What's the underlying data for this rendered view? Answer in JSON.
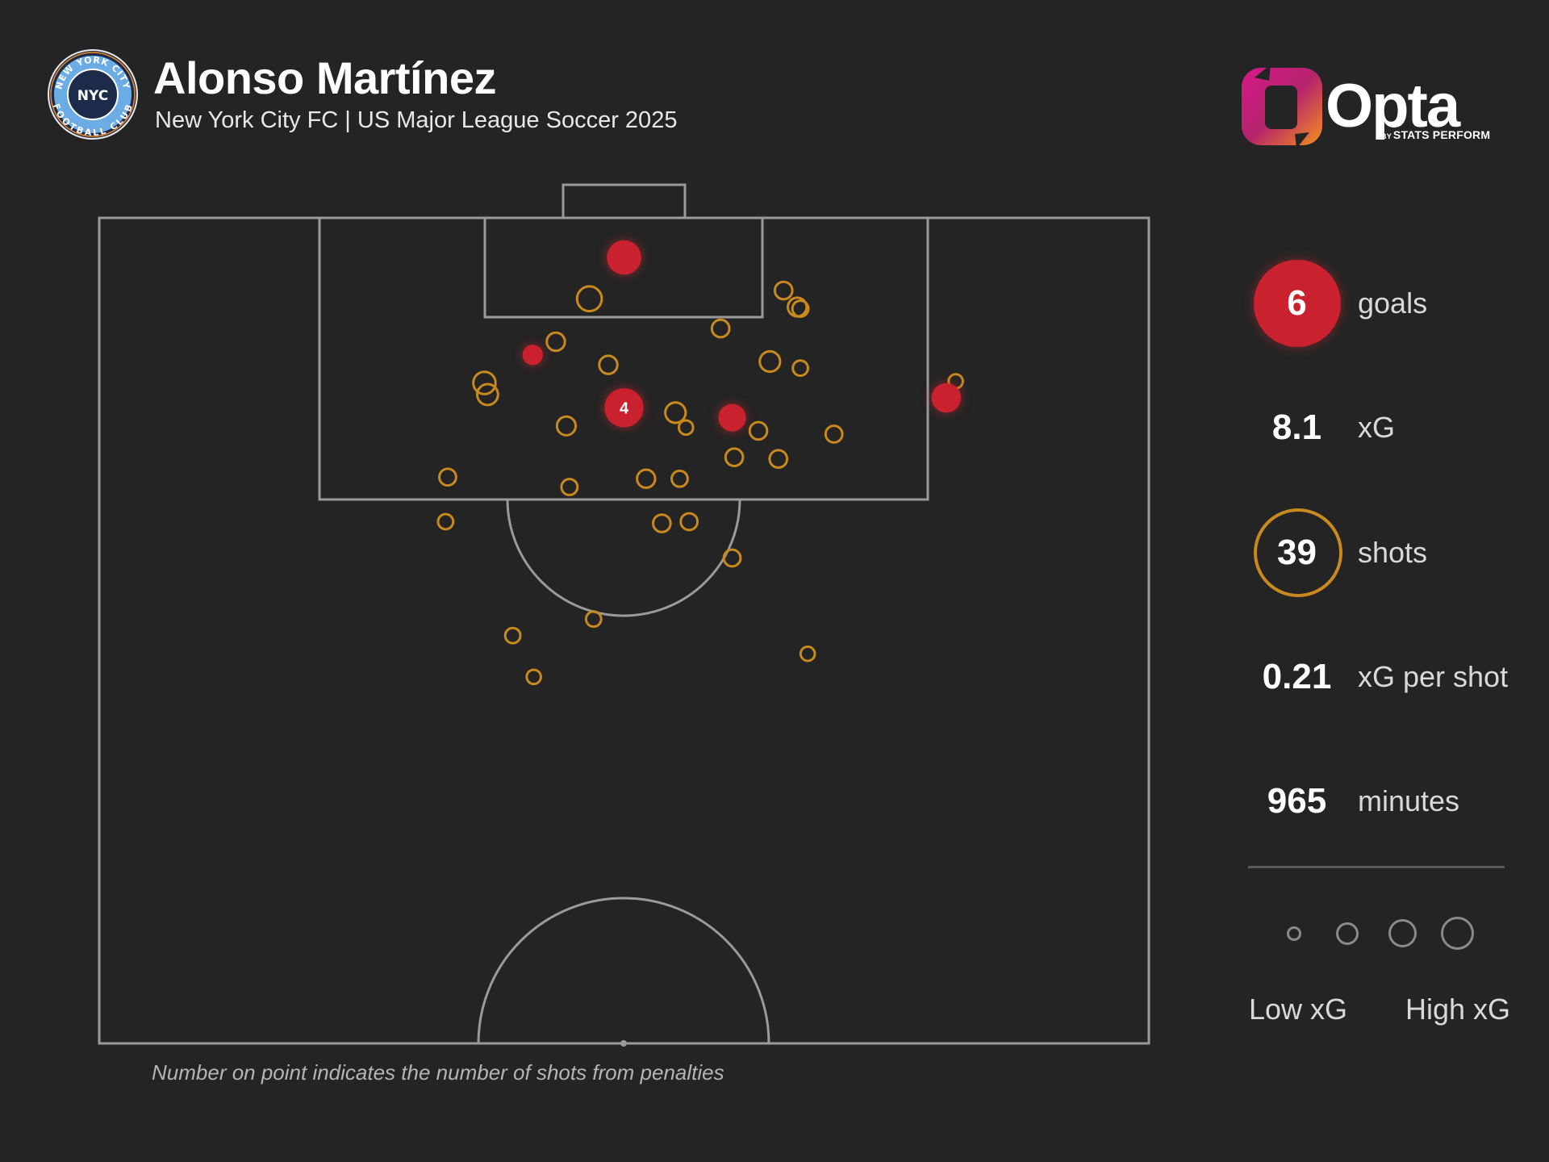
{
  "header": {
    "player_name": "Alonso Martínez",
    "subtitle": "New York City FC | US Major League Soccer 2025"
  },
  "crest": {
    "ring_text_top": "NEW YORK CITY",
    "ring_text_bottom": "FOOTBALL CLUB",
    "monogram": "NYC",
    "icon": "nycfc-crest-icon"
  },
  "brand": {
    "word": "Opta",
    "by_text": "BY",
    "sub_text": "STATS PERFORM",
    "icon": "opta-logo-icon"
  },
  "stats": {
    "goals": {
      "value": "6",
      "label": "goals"
    },
    "xg": {
      "value": "8.1",
      "label": "xG"
    },
    "shots": {
      "value": "39",
      "label": "shots"
    },
    "xg_per_shot": {
      "value": "0.21",
      "label": "xG per shot"
    },
    "minutes": {
      "value": "965",
      "label": "minutes"
    }
  },
  "legend": {
    "low_label": "Low xG",
    "high_label": "High xG"
  },
  "footnote": "Number on point indicates the number of shots from penalties",
  "colors": {
    "background": "#242424",
    "goal": "#c9212e",
    "shot": "#c8891e",
    "pitch_lines": "#9a9a9a",
    "legend_circles": "#8a8a8a"
  },
  "chart_data": {
    "type": "scatter",
    "title": "Alonso Martínez",
    "x_axis": "pitch width (0 = left touchline, 100 = right touchline)",
    "y_axis": "distance from goal line (0 = goal line, 50 = halfway line)",
    "xlim": [
      0,
      100
    ],
    "ylim": [
      0,
      50
    ],
    "size_encodes": "xG",
    "series": [
      {
        "name": "goals",
        "points": [
          {
            "x": 50.0,
            "y": 2.4,
            "xg": 0.55
          },
          {
            "x": 41.3,
            "y": 8.3,
            "xg": 0.12
          },
          {
            "x": 50.0,
            "y": 11.5,
            "xg": 0.76,
            "penalties": 4
          },
          {
            "x": 60.3,
            "y": 12.1,
            "xg": 0.3
          },
          {
            "x": 80.7,
            "y": 10.9,
            "xg": 0.36
          }
        ]
      },
      {
        "name": "shots",
        "points": [
          {
            "x": 46.7,
            "y": 4.9,
            "xg": 0.22
          },
          {
            "x": 65.2,
            "y": 4.4,
            "xg": 0.07
          },
          {
            "x": 66.5,
            "y": 5.4,
            "xg": 0.09
          },
          {
            "x": 66.8,
            "y": 5.5,
            "xg": 0.05
          },
          {
            "x": 59.2,
            "y": 6.7,
            "xg": 0.07
          },
          {
            "x": 43.5,
            "y": 7.5,
            "xg": 0.08
          },
          {
            "x": 48.5,
            "y": 8.9,
            "xg": 0.08
          },
          {
            "x": 63.9,
            "y": 8.7,
            "xg": 0.12
          },
          {
            "x": 66.8,
            "y": 9.1,
            "xg": 0.04
          },
          {
            "x": 36.7,
            "y": 10.0,
            "xg": 0.16
          },
          {
            "x": 37.0,
            "y": 10.7,
            "xg": 0.13
          },
          {
            "x": 81.6,
            "y": 9.9,
            "xg": 0.03
          },
          {
            "x": 54.9,
            "y": 11.8,
            "xg": 0.12
          },
          {
            "x": 55.9,
            "y": 12.7,
            "xg": 0.03
          },
          {
            "x": 44.5,
            "y": 12.6,
            "xg": 0.09
          },
          {
            "x": 62.8,
            "y": 12.9,
            "xg": 0.07
          },
          {
            "x": 70.0,
            "y": 13.1,
            "xg": 0.06
          },
          {
            "x": 60.5,
            "y": 14.5,
            "xg": 0.07
          },
          {
            "x": 64.7,
            "y": 14.6,
            "xg": 0.07
          },
          {
            "x": 33.2,
            "y": 15.7,
            "xg": 0.06
          },
          {
            "x": 44.8,
            "y": 16.3,
            "xg": 0.05
          },
          {
            "x": 52.1,
            "y": 15.8,
            "xg": 0.08
          },
          {
            "x": 55.3,
            "y": 15.8,
            "xg": 0.05
          },
          {
            "x": 33.0,
            "y": 18.4,
            "xg": 0.04
          },
          {
            "x": 53.6,
            "y": 18.5,
            "xg": 0.07
          },
          {
            "x": 56.2,
            "y": 18.4,
            "xg": 0.06
          },
          {
            "x": 60.3,
            "y": 20.6,
            "xg": 0.06
          },
          {
            "x": 47.1,
            "y": 24.3,
            "xg": 0.04
          },
          {
            "x": 39.4,
            "y": 25.3,
            "xg": 0.04
          },
          {
            "x": 67.5,
            "y": 26.4,
            "xg": 0.03
          },
          {
            "x": 41.4,
            "y": 27.8,
            "xg": 0.03
          }
        ]
      }
    ],
    "legend_sizes": [
      "Low xG",
      "High xG"
    ],
    "annotation": "Number on point indicates the number of shots from penalties"
  }
}
